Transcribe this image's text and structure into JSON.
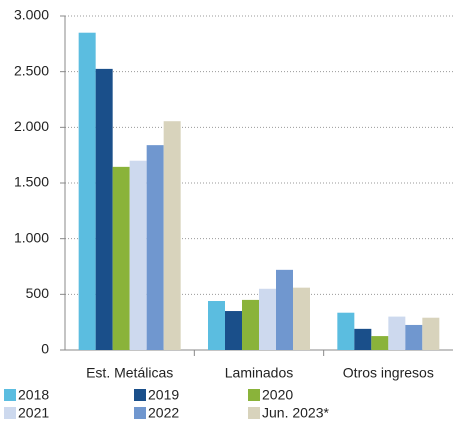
{
  "chart_data": {
    "type": "bar",
    "categories": [
      "Est. Metálicas",
      "Laminados",
      "Otros ingresos"
    ],
    "series": [
      {
        "name": "2018",
        "color": "#5bbde0",
        "values": [
          2850,
          440,
          335
        ]
      },
      {
        "name": "2019",
        "color": "#1a4f8a",
        "values": [
          2525,
          350,
          190
        ]
      },
      {
        "name": "2020",
        "color": "#8ab33a",
        "values": [
          1645,
          450,
          125
        ]
      },
      {
        "name": "2021",
        "color": "#cdd9ee",
        "values": [
          1700,
          550,
          300
        ]
      },
      {
        "name": "2022",
        "color": "#7097cf",
        "values": [
          1840,
          720,
          225
        ]
      },
      {
        "name": "Jun. 2023*",
        "color": "#d8d3bc",
        "values": [
          2055,
          560,
          290
        ]
      }
    ],
    "ylim": [
      0,
      3000
    ],
    "yticks": [
      0,
      500,
      {
        "value": 1000,
        "label": "1.000"
      },
      {
        "value": 1500,
        "label": "1.500"
      },
      {
        "value": 2000,
        "label": "2.000"
      },
      {
        "value": 2500,
        "label": "2.500"
      },
      {
        "value": 3000,
        "label": "3.000"
      }
    ],
    "grid": true
  }
}
